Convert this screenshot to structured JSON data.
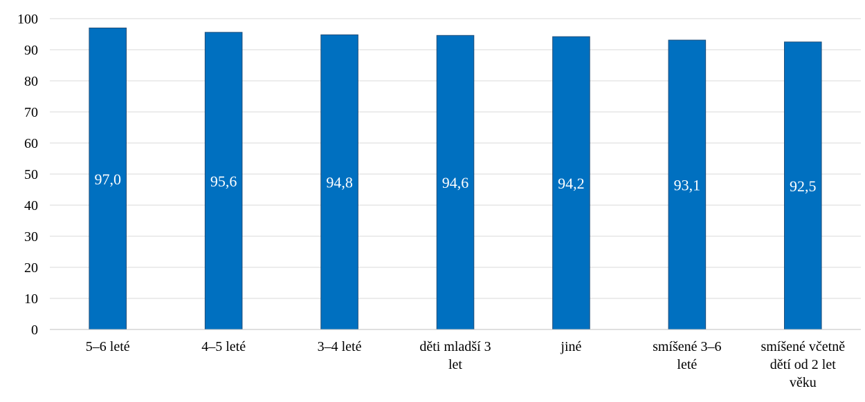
{
  "chart_data": {
    "type": "bar",
    "categories": [
      "5–6 leté",
      "4–5 leté",
      "3–4 leté",
      "děti mladší 3 let",
      "jiné",
      "smíšené 3–6 leté",
      "smíšené včetně dětí od 2 let věku"
    ],
    "category_label_lines": [
      [
        "5–6 leté"
      ],
      [
        "4–5 leté"
      ],
      [
        "3–4 leté"
      ],
      [
        "děti mladší 3",
        "let"
      ],
      [
        "jiné"
      ],
      [
        "smíšené 3–6",
        "leté"
      ],
      [
        "smíšené včetně",
        "dětí od 2 let",
        "věku"
      ]
    ],
    "values": [
      97.0,
      95.6,
      94.8,
      94.6,
      94.2,
      93.1,
      92.5
    ],
    "data_labels": [
      "97,0",
      "95,6",
      "94,8",
      "94,6",
      "94,2",
      "93,1",
      "92,5"
    ],
    "y_ticks": [
      "0",
      "10",
      "20",
      "30",
      "40",
      "50",
      "60",
      "70",
      "80",
      "90",
      "100"
    ],
    "ylim": [
      0,
      100
    ],
    "title": "",
    "xlabel": "",
    "ylabel": "",
    "grid": true,
    "legend": "none",
    "colors": {
      "bar": "#0070C0",
      "bar_edge": "#1F4E79",
      "grid": "#D9D9D9",
      "axis": "#BFBFBF"
    }
  }
}
